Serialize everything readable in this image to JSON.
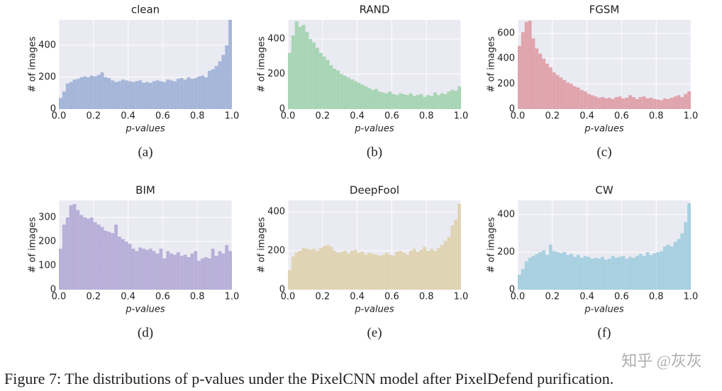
{
  "chart_data": [
    {
      "type": "histogram",
      "title": "clean",
      "xlabel": "p-values",
      "ylabel": "# of images",
      "caption": "(a)",
      "color": "#a5b6d9",
      "bins": [
        0,
        0.02,
        0.04,
        0.06,
        0.08,
        0.1,
        0.12,
        0.14,
        0.16,
        0.18,
        0.2,
        0.22,
        0.24,
        0.26,
        0.28,
        0.3,
        0.32,
        0.34,
        0.36,
        0.38,
        0.4,
        0.42,
        0.44,
        0.46,
        0.48,
        0.5,
        0.52,
        0.54,
        0.56,
        0.58,
        0.6,
        0.62,
        0.64,
        0.66,
        0.68,
        0.7,
        0.72,
        0.74,
        0.76,
        0.78,
        0.8,
        0.82,
        0.84,
        0.86,
        0.88,
        0.9,
        0.92,
        0.94,
        0.96,
        0.98,
        1
      ],
      "counts": [
        70,
        110,
        160,
        170,
        185,
        190,
        200,
        205,
        200,
        210,
        205,
        215,
        230,
        200,
        195,
        180,
        170,
        175,
        185,
        180,
        175,
        170,
        175,
        180,
        165,
        170,
        165,
        175,
        180,
        175,
        170,
        185,
        180,
        175,
        190,
        195,
        185,
        200,
        190,
        195,
        205,
        210,
        200,
        240,
        250,
        270,
        300,
        340,
        400,
        560
      ],
      "xlim": [
        0,
        1
      ],
      "ylim": [
        0,
        560
      ],
      "xticks": [
        {
          "value": 0,
          "label": "0.0"
        },
        0.2,
        0.4,
        0.6,
        0.8,
        {
          "value": 1,
          "label": "1.0"
        }
      ],
      "yticks": [
        0,
        200,
        400
      ],
      "grid": true
    },
    {
      "type": "histogram",
      "title": "RAND",
      "xlabel": "p-values",
      "ylabel": "# of images",
      "caption": "(b)",
      "color": "#a8d5b5",
      "bins": [
        0,
        0.02,
        0.04,
        0.06,
        0.08,
        0.1,
        0.12,
        0.14,
        0.16,
        0.18,
        0.2,
        0.22,
        0.24,
        0.26,
        0.28,
        0.3,
        0.32,
        0.34,
        0.36,
        0.38,
        0.4,
        0.42,
        0.44,
        0.46,
        0.48,
        0.5,
        0.52,
        0.54,
        0.56,
        0.58,
        0.6,
        0.62,
        0.64,
        0.66,
        0.68,
        0.7,
        0.72,
        0.74,
        0.76,
        0.78,
        0.8,
        0.82,
        0.84,
        0.86,
        0.88,
        0.9,
        0.92,
        0.94,
        0.96,
        0.98,
        1
      ],
      "counts": [
        320,
        420,
        500,
        470,
        480,
        440,
        400,
        380,
        350,
        320,
        300,
        280,
        250,
        230,
        220,
        200,
        190,
        180,
        170,
        160,
        150,
        140,
        130,
        120,
        110,
        115,
        100,
        95,
        90,
        100,
        85,
        80,
        90,
        85,
        80,
        90,
        75,
        80,
        85,
        70,
        80,
        75,
        95,
        80,
        90,
        85,
        100,
        110,
        105,
        130
      ],
      "xlim": [
        0,
        1
      ],
      "ylim": [
        0,
        509
      ],
      "xticks": [
        {
          "value": 0,
          "label": "0.0"
        },
        0.2,
        0.4,
        0.6,
        0.8,
        {
          "value": 1,
          "label": "1.0"
        }
      ],
      "yticks": [
        0,
        200,
        400
      ],
      "grid": true
    },
    {
      "type": "histogram",
      "title": "FGSM",
      "xlabel": "p-values",
      "ylabel": "# of images",
      "caption": "(c)",
      "color": "#e0a4ac",
      "bins": [
        0,
        0.02,
        0.04,
        0.06,
        0.08,
        0.1,
        0.12,
        0.14,
        0.16,
        0.18,
        0.2,
        0.22,
        0.24,
        0.26,
        0.28,
        0.3,
        0.32,
        0.34,
        0.36,
        0.38,
        0.4,
        0.42,
        0.44,
        0.46,
        0.48,
        0.5,
        0.52,
        0.54,
        0.56,
        0.58,
        0.6,
        0.62,
        0.64,
        0.66,
        0.68,
        0.7,
        0.72,
        0.74,
        0.76,
        0.78,
        0.8,
        0.82,
        0.84,
        0.86,
        0.88,
        0.9,
        0.92,
        0.94,
        0.96,
        0.98,
        1
      ],
      "counts": [
        500,
        610,
        690,
        700,
        560,
        480,
        440,
        400,
        360,
        330,
        290,
        270,
        250,
        230,
        210,
        200,
        180,
        170,
        150,
        140,
        120,
        110,
        100,
        90,
        95,
        85,
        90,
        80,
        95,
        100,
        85,
        90,
        110,
        95,
        80,
        95,
        100,
        85,
        90,
        80,
        75,
        70,
        85,
        80,
        90,
        100,
        110,
        95,
        120,
        140
      ],
      "xlim": [
        0,
        1
      ],
      "ylim": [
        0,
        707
      ],
      "xticks": [
        {
          "value": 0,
          "label": "0.0"
        },
        0.2,
        0.4,
        0.6,
        0.8,
        {
          "value": 1,
          "label": "1.0"
        }
      ],
      "yticks": [
        0,
        200,
        400,
        600
      ],
      "grid": true
    },
    {
      "type": "histogram",
      "title": "BIM",
      "xlabel": "p-values",
      "ylabel": "# of images",
      "caption": "(d)",
      "color": "#b8b0d8",
      "bins": [
        0,
        0.02,
        0.04,
        0.06,
        0.08,
        0.1,
        0.12,
        0.14,
        0.16,
        0.18,
        0.2,
        0.22,
        0.24,
        0.26,
        0.28,
        0.3,
        0.32,
        0.34,
        0.36,
        0.38,
        0.4,
        0.42,
        0.44,
        0.46,
        0.48,
        0.5,
        0.52,
        0.54,
        0.56,
        0.58,
        0.6,
        0.62,
        0.64,
        0.66,
        0.68,
        0.7,
        0.72,
        0.74,
        0.76,
        0.78,
        0.8,
        0.82,
        0.84,
        0.86,
        0.88,
        0.9,
        0.92,
        0.94,
        0.96,
        0.98,
        1
      ],
      "counts": [
        170,
        270,
        300,
        350,
        355,
        330,
        310,
        300,
        295,
        300,
        280,
        270,
        260,
        245,
        240,
        235,
        270,
        220,
        210,
        200,
        190,
        170,
        160,
        175,
        170,
        165,
        170,
        160,
        150,
        170,
        130,
        160,
        150,
        145,
        155,
        140,
        145,
        135,
        150,
        160,
        120,
        130,
        135,
        130,
        170,
        140,
        160,
        150,
        185,
        160
      ],
      "xlim": [
        0,
        1
      ],
      "ylim": [
        0,
        370
      ],
      "xticks": [
        {
          "value": 0,
          "label": "0.0"
        },
        0.2,
        0.4,
        0.6,
        0.8,
        {
          "value": 1,
          "label": "1.0"
        }
      ],
      "yticks": [
        0,
        100,
        200,
        300
      ],
      "grid": true
    },
    {
      "type": "histogram",
      "title": "DeepFool",
      "xlabel": "p-values",
      "ylabel": "# of images",
      "caption": "(e)",
      "color": "#e0d4b4",
      "bins": [
        0,
        0.02,
        0.04,
        0.06,
        0.08,
        0.1,
        0.12,
        0.14,
        0.16,
        0.18,
        0.2,
        0.22,
        0.24,
        0.26,
        0.28,
        0.3,
        0.32,
        0.34,
        0.36,
        0.38,
        0.4,
        0.42,
        0.44,
        0.46,
        0.48,
        0.5,
        0.52,
        0.54,
        0.56,
        0.58,
        0.6,
        0.62,
        0.64,
        0.66,
        0.68,
        0.7,
        0.72,
        0.74,
        0.76,
        0.78,
        0.8,
        0.82,
        0.84,
        0.86,
        0.88,
        0.9,
        0.92,
        0.94,
        0.96,
        0.98,
        1
      ],
      "counts": [
        100,
        170,
        190,
        200,
        215,
        210,
        205,
        210,
        200,
        215,
        225,
        230,
        220,
        200,
        190,
        195,
        200,
        185,
        200,
        205,
        190,
        195,
        180,
        190,
        185,
        180,
        175,
        180,
        190,
        180,
        175,
        195,
        200,
        190,
        180,
        200,
        210,
        195,
        205,
        220,
        200,
        210,
        200,
        215,
        230,
        250,
        270,
        330,
        360,
        440
      ],
      "xlim": [
        0,
        1
      ],
      "ylim": [
        0,
        458
      ],
      "xticks": [
        {
          "value": 0,
          "label": "0.0"
        },
        0.2,
        0.4,
        0.6,
        0.8,
        {
          "value": 1,
          "label": "1.0"
        }
      ],
      "yticks": [
        0,
        200,
        400
      ],
      "grid": true
    },
    {
      "type": "histogram",
      "title": "CW",
      "xlabel": "p-values",
      "ylabel": "# of images",
      "caption": "(f)",
      "color": "#a8d0e0",
      "bins": [
        0,
        0.02,
        0.04,
        0.06,
        0.08,
        0.1,
        0.12,
        0.14,
        0.16,
        0.18,
        0.2,
        0.22,
        0.24,
        0.26,
        0.28,
        0.3,
        0.32,
        0.34,
        0.36,
        0.38,
        0.4,
        0.42,
        0.44,
        0.46,
        0.48,
        0.5,
        0.52,
        0.54,
        0.56,
        0.58,
        0.6,
        0.62,
        0.64,
        0.66,
        0.68,
        0.7,
        0.72,
        0.74,
        0.76,
        0.78,
        0.8,
        0.82,
        0.84,
        0.86,
        0.88,
        0.9,
        0.92,
        0.94,
        0.96,
        0.98,
        1
      ],
      "counts": [
        80,
        110,
        150,
        170,
        180,
        190,
        200,
        210,
        185,
        240,
        205,
        200,
        195,
        200,
        185,
        190,
        175,
        185,
        170,
        180,
        175,
        165,
        170,
        165,
        175,
        160,
        165,
        180,
        170,
        175,
        180,
        165,
        175,
        170,
        180,
        190,
        180,
        200,
        185,
        195,
        200,
        205,
        230,
        240,
        230,
        255,
        270,
        300,
        360,
        460
      ],
      "xlim": [
        0,
        1
      ],
      "ylim": [
        0,
        475
      ],
      "xticks": [
        {
          "value": 0,
          "label": "0.0"
        },
        0.2,
        0.4,
        0.6,
        0.8,
        {
          "value": 1,
          "label": "1.0"
        }
      ],
      "yticks": [
        0,
        200,
        400
      ],
      "grid": true
    }
  ],
  "figure_caption": "Figure 7: The distributions of p-values under the PixelCNN model after PixelDefend purification.",
  "watermark": "知乎 @灰灰"
}
